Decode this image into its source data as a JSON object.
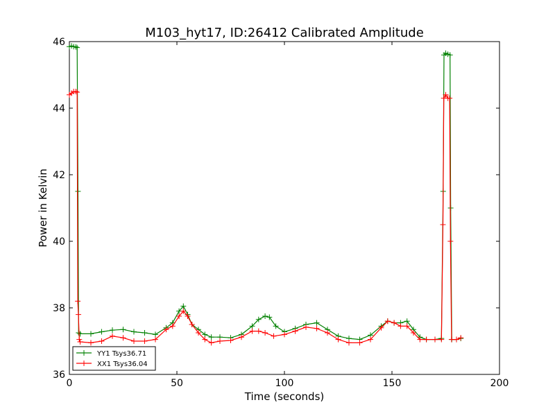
{
  "chart_data": {
    "type": "line",
    "title": "M103_hyt17, ID:26412 Calibrated Amplitude",
    "xlabel": "Time (seconds)",
    "ylabel": "Power in Kelvin",
    "xlim": [
      0,
      200
    ],
    "ylim": [
      36,
      46
    ],
    "xticks": [
      0,
      50,
      100,
      150,
      200
    ],
    "yticks": [
      36,
      38,
      40,
      42,
      44,
      46
    ],
    "grid": false,
    "legend": "lower-left",
    "series": [
      {
        "name": "YY1 Tsys36.71",
        "color": "#008000",
        "marker": "+",
        "x": [
          0,
          1,
          2,
          3,
          3.6,
          4.0,
          4.3,
          5,
          10,
          15,
          20,
          25,
          30,
          35,
          40,
          45,
          48,
          51,
          53,
          55,
          57,
          60,
          63,
          66,
          70,
          75,
          80,
          85,
          88,
          91,
          93,
          96,
          100,
          105,
          110,
          115,
          120,
          125,
          130,
          135,
          140,
          145,
          148,
          151,
          154,
          157,
          160,
          163,
          166,
          170,
          173,
          173.8,
          174.2,
          175,
          176,
          177,
          177.3,
          177.8,
          180,
          182
        ],
        "y": [
          45.85,
          45.87,
          45.85,
          45.84,
          45.82,
          41.5,
          37.25,
          37.22,
          37.22,
          37.28,
          37.33,
          37.35,
          37.28,
          37.25,
          37.2,
          37.4,
          37.55,
          37.9,
          38.05,
          37.8,
          37.5,
          37.35,
          37.2,
          37.12,
          37.12,
          37.1,
          37.2,
          37.45,
          37.65,
          37.75,
          37.72,
          37.45,
          37.28,
          37.38,
          37.5,
          37.55,
          37.35,
          37.15,
          37.08,
          37.05,
          37.18,
          37.45,
          37.6,
          37.55,
          37.55,
          37.6,
          37.35,
          37.12,
          37.05,
          37.05,
          37.08,
          41.5,
          45.6,
          45.65,
          45.62,
          45.6,
          41.0,
          37.05,
          37.05,
          37.08
        ]
      },
      {
        "name": "XX1 Tsys36.04",
        "color": "#ff0000",
        "marker": "+",
        "x": [
          0,
          1,
          2,
          3,
          3.6,
          3.9,
          4.2,
          4.6,
          5,
          10,
          15,
          20,
          25,
          30,
          35,
          40,
          45,
          48,
          51,
          53,
          55,
          57,
          60,
          63,
          66,
          70,
          75,
          80,
          85,
          88,
          91,
          95,
          100,
          105,
          110,
          115,
          120,
          125,
          130,
          135,
          140,
          145,
          148,
          151,
          154,
          157,
          160,
          163,
          166,
          170,
          173,
          173.7,
          174.1,
          175,
          176,
          176.8,
          177.2,
          177.7,
          180,
          182
        ],
        "y": [
          44.4,
          44.45,
          44.5,
          44.5,
          44.48,
          38.2,
          37.8,
          37.05,
          36.98,
          36.95,
          37.0,
          37.15,
          37.1,
          37.0,
          37.0,
          37.05,
          37.35,
          37.45,
          37.75,
          37.9,
          37.75,
          37.5,
          37.25,
          37.05,
          36.95,
          37.0,
          37.02,
          37.12,
          37.3,
          37.3,
          37.25,
          37.15,
          37.2,
          37.3,
          37.42,
          37.38,
          37.25,
          37.05,
          36.95,
          36.95,
          37.05,
          37.4,
          37.6,
          37.55,
          37.45,
          37.45,
          37.25,
          37.05,
          37.05,
          37.05,
          37.05,
          40.5,
          44.3,
          44.4,
          44.3,
          44.3,
          40.0,
          37.05,
          37.05,
          37.1
        ]
      }
    ]
  }
}
